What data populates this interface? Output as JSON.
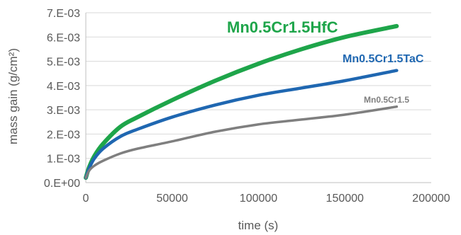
{
  "chart_data": {
    "type": "line",
    "title": "",
    "xlabel": "time (s)",
    "ylabel": "mass gain (g/cm²)",
    "xlim": [
      0,
      200000
    ],
    "ylim": [
      0,
      0.007
    ],
    "x_ticks": [
      0,
      50000,
      100000,
      150000,
      200000
    ],
    "x_tick_labels": [
      "0",
      "50000",
      "100000",
      "150000",
      "200000"
    ],
    "y_ticks": [
      0,
      0.001,
      0.002,
      0.003,
      0.004,
      0.005,
      0.006,
      0.007
    ],
    "y_tick_labels": [
      "0.E+00",
      "1.E-03",
      "2.E-03",
      "3.E-03",
      "4.E-03",
      "5.E-03",
      "6.E-03",
      "7.E-03"
    ],
    "grid": true,
    "legend": "inline labels",
    "series": [
      {
        "name": "Mn0.5Cr1.5HfC",
        "color": "#1ea54a",
        "x": [
          0,
          2000,
          5000,
          10000,
          20000,
          30000,
          50000,
          75000,
          100000,
          125000,
          150000,
          180000
        ],
        "y": [
          0.0002,
          0.00065,
          0.0011,
          0.0016,
          0.0023,
          0.0027,
          0.0034,
          0.0042,
          0.0049,
          0.0055,
          0.006,
          0.00645
        ]
      },
      {
        "name": "Mn0.5Cr1.5TaC",
        "color": "#1f67b1",
        "x": [
          0,
          2000,
          5000,
          10000,
          20000,
          30000,
          50000,
          75000,
          100000,
          125000,
          150000,
          180000
        ],
        "y": [
          0.0002,
          0.0006,
          0.001,
          0.0014,
          0.0019,
          0.0022,
          0.0027,
          0.0032,
          0.0036,
          0.0039,
          0.0042,
          0.00462
        ]
      },
      {
        "name": "Mn0.5Cr1.5",
        "color": "#7f7f7f",
        "x": [
          0,
          2000,
          5000,
          10000,
          20000,
          30000,
          50000,
          75000,
          100000,
          125000,
          150000,
          180000
        ],
        "y": [
          0.0002,
          0.0005,
          0.0007,
          0.0009,
          0.0012,
          0.0014,
          0.0017,
          0.0021,
          0.0024,
          0.0026,
          0.0028,
          0.00313
        ]
      }
    ]
  }
}
